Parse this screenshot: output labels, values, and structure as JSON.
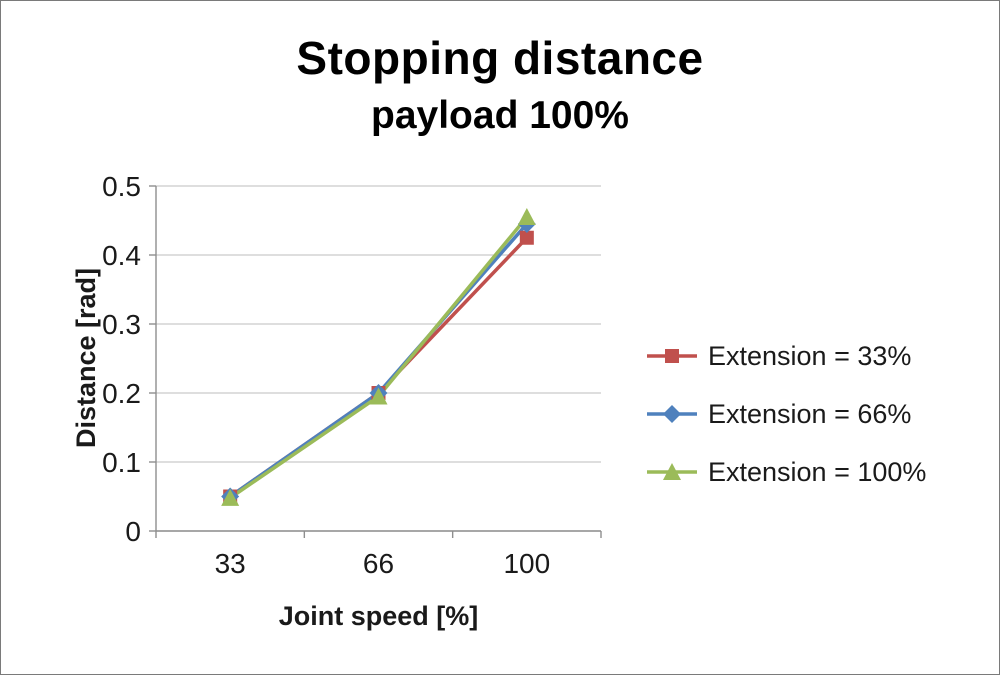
{
  "chart_data": {
    "type": "line",
    "title": "Stopping distance",
    "subtitle": "payload 100%",
    "xlabel": "Joint speed [%]",
    "ylabel": "Distance [rad]",
    "categories": [
      "33",
      "66",
      "100"
    ],
    "series": [
      {
        "name": "Extension = 33%",
        "color": "#c0504d",
        "marker": "square",
        "values": [
          0.05,
          0.2,
          0.425
        ]
      },
      {
        "name": "Extension = 66%",
        "color": "#4f81bd",
        "marker": "diamond",
        "values": [
          0.05,
          0.2,
          0.445
        ]
      },
      {
        "name": "Extension = 100%",
        "color": "#9bbb59",
        "marker": "triangle",
        "values": [
          0.048,
          0.195,
          0.455
        ]
      }
    ],
    "ylim": [
      0,
      0.5
    ],
    "yticks": [
      0,
      0.1,
      0.2,
      0.3,
      0.4,
      0.5
    ],
    "ytick_labels": [
      "0",
      "0.1",
      "0.2",
      "0.3",
      "0.4",
      "0.5"
    ],
    "grid": true,
    "legend_position": "right",
    "colors": {
      "gridline": "#c9c9c9",
      "axis": "#8e8e8e",
      "text": "#1a1a1a"
    }
  }
}
